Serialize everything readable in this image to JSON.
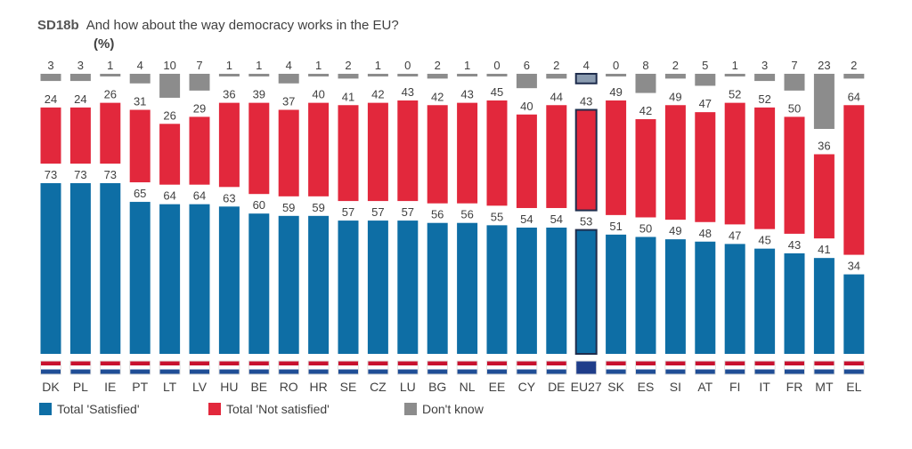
{
  "title": {
    "code": "SD18b",
    "text": "And how about the way democracy works in the EU?",
    "unit": "(%)"
  },
  "colors": {
    "satisfied": "#0e6ea5",
    "not_satisfied": "#e2283c",
    "dont_know": "#8c8c8c",
    "eu_outline": "#1f2d4d"
  },
  "chart_data": {
    "type": "bar",
    "stacked": true,
    "categories": [
      "DK",
      "PL",
      "IE",
      "PT",
      "LT",
      "LV",
      "HU",
      "BE",
      "RO",
      "HR",
      "SE",
      "CZ",
      "LU",
      "BG",
      "NL",
      "EE",
      "CY",
      "DE",
      "EU27",
      "SK",
      "ES",
      "SI",
      "AT",
      "FI",
      "IT",
      "FR",
      "MT",
      "EL"
    ],
    "series": [
      {
        "name": "Total 'Satisfied'",
        "values": [
          73,
          73,
          73,
          65,
          64,
          64,
          63,
          60,
          59,
          59,
          57,
          57,
          57,
          56,
          56,
          55,
          54,
          54,
          53,
          51,
          50,
          49,
          48,
          47,
          45,
          43,
          41,
          34
        ]
      },
      {
        "name": "Total 'Not satisfied'",
        "values": [
          24,
          24,
          26,
          31,
          26,
          29,
          36,
          39,
          37,
          40,
          41,
          42,
          43,
          42,
          43,
          45,
          40,
          44,
          43,
          49,
          42,
          49,
          47,
          52,
          52,
          50,
          36,
          64
        ]
      },
      {
        "name": "Don't know",
        "values": [
          3,
          3,
          1,
          4,
          10,
          7,
          1,
          1,
          4,
          1,
          2,
          1,
          0,
          2,
          1,
          0,
          6,
          2,
          4,
          0,
          8,
          2,
          5,
          1,
          3,
          7,
          23,
          2
        ]
      }
    ],
    "highlight": "EU27",
    "ylim": [
      0,
      100
    ],
    "legend_position": "bottom-left"
  }
}
